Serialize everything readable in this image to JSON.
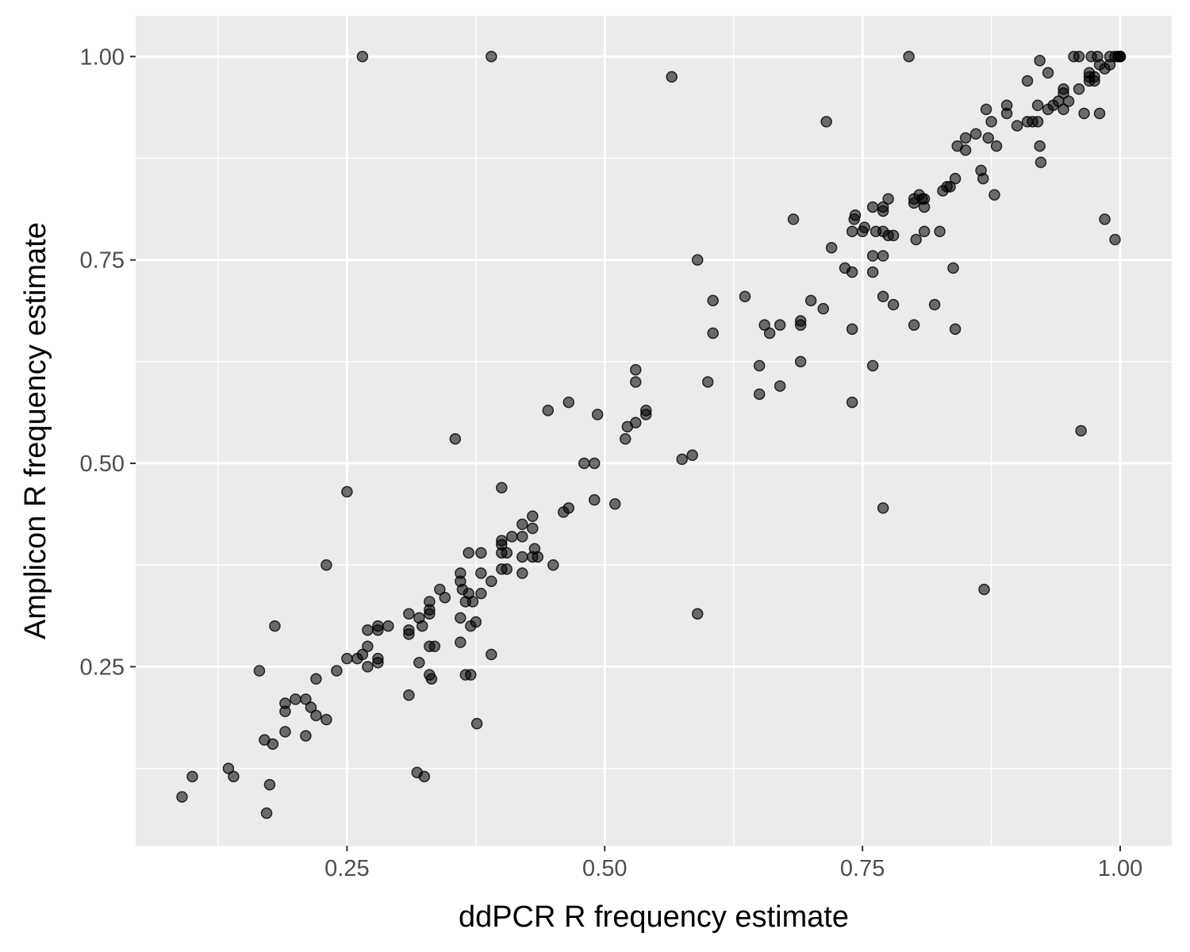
{
  "chart_data": {
    "type": "scatter",
    "title": "",
    "xlabel": "ddPCR R frequency estimate",
    "ylabel": "Amplicon R frequency estimate",
    "xlim": [
      0.045,
      1.05
    ],
    "ylim": [
      0.03,
      1.05
    ],
    "x_ticks": [
      0.25,
      0.5,
      0.75,
      1.0
    ],
    "x_tick_labels": [
      "0.25",
      "0.50",
      "0.75",
      "1.00"
    ],
    "y_ticks": [
      0.25,
      0.5,
      0.75,
      1.0
    ],
    "y_tick_labels": [
      "0.25",
      "0.50",
      "0.75",
      "1.00"
    ],
    "grid": true,
    "panel_color": "#ebebeb",
    "grid_color": "#ffffff",
    "point_color": "#000000",
    "points": [
      [
        0.09,
        0.09
      ],
      [
        0.1,
        0.115
      ],
      [
        0.135,
        0.125
      ],
      [
        0.14,
        0.115
      ],
      [
        0.165,
        0.245
      ],
      [
        0.17,
        0.16
      ],
      [
        0.172,
        0.07
      ],
      [
        0.175,
        0.105
      ],
      [
        0.178,
        0.155
      ],
      [
        0.18,
        0.3
      ],
      [
        0.19,
        0.17
      ],
      [
        0.19,
        0.195
      ],
      [
        0.19,
        0.205
      ],
      [
        0.2,
        0.21
      ],
      [
        0.21,
        0.21
      ],
      [
        0.21,
        0.165
      ],
      [
        0.215,
        0.2
      ],
      [
        0.22,
        0.19
      ],
      [
        0.22,
        0.235
      ],
      [
        0.23,
        0.185
      ],
      [
        0.23,
        0.375
      ],
      [
        0.24,
        0.245
      ],
      [
        0.25,
        0.26
      ],
      [
        0.25,
        0.465
      ],
      [
        0.26,
        0.26
      ],
      [
        0.265,
        0.265
      ],
      [
        0.265,
        1.0
      ],
      [
        0.27,
        0.275
      ],
      [
        0.27,
        0.25
      ],
      [
        0.27,
        0.295
      ],
      [
        0.28,
        0.3
      ],
      [
        0.28,
        0.255
      ],
      [
        0.28,
        0.26
      ],
      [
        0.28,
        0.295
      ],
      [
        0.29,
        0.3
      ],
      [
        0.31,
        0.29
      ],
      [
        0.31,
        0.295
      ],
      [
        0.31,
        0.315
      ],
      [
        0.31,
        0.215
      ],
      [
        0.318,
        0.12
      ],
      [
        0.32,
        0.255
      ],
      [
        0.32,
        0.31
      ],
      [
        0.323,
        0.3
      ],
      [
        0.325,
        0.115
      ],
      [
        0.33,
        0.315
      ],
      [
        0.33,
        0.32
      ],
      [
        0.33,
        0.275
      ],
      [
        0.33,
        0.24
      ],
      [
        0.33,
        0.33
      ],
      [
        0.332,
        0.235
      ],
      [
        0.335,
        0.275
      ],
      [
        0.34,
        0.345
      ],
      [
        0.345,
        0.335
      ],
      [
        0.355,
        0.53
      ],
      [
        0.36,
        0.365
      ],
      [
        0.36,
        0.355
      ],
      [
        0.36,
        0.31
      ],
      [
        0.36,
        0.28
      ],
      [
        0.362,
        0.345
      ],
      [
        0.365,
        0.33
      ],
      [
        0.365,
        0.24
      ],
      [
        0.368,
        0.39
      ],
      [
        0.368,
        0.34
      ],
      [
        0.37,
        0.3
      ],
      [
        0.37,
        0.24
      ],
      [
        0.372,
        0.33
      ],
      [
        0.375,
        0.305
      ],
      [
        0.376,
        0.18
      ],
      [
        0.38,
        0.365
      ],
      [
        0.38,
        0.34
      ],
      [
        0.38,
        0.39
      ],
      [
        0.39,
        0.265
      ],
      [
        0.39,
        0.355
      ],
      [
        0.39,
        1.0
      ],
      [
        0.4,
        0.4
      ],
      [
        0.4,
        0.39
      ],
      [
        0.4,
        0.405
      ],
      [
        0.4,
        0.47
      ],
      [
        0.4,
        0.37
      ],
      [
        0.405,
        0.39
      ],
      [
        0.405,
        0.37
      ],
      [
        0.41,
        0.41
      ],
      [
        0.42,
        0.425
      ],
      [
        0.42,
        0.41
      ],
      [
        0.42,
        0.385
      ],
      [
        0.42,
        0.365
      ],
      [
        0.43,
        0.435
      ],
      [
        0.43,
        0.42
      ],
      [
        0.43,
        0.385
      ],
      [
        0.432,
        0.395
      ],
      [
        0.435,
        0.385
      ],
      [
        0.445,
        0.565
      ],
      [
        0.45,
        0.375
      ],
      [
        0.46,
        0.44
      ],
      [
        0.465,
        0.445
      ],
      [
        0.465,
        0.575
      ],
      [
        0.48,
        0.5
      ],
      [
        0.49,
        0.5
      ],
      [
        0.49,
        0.455
      ],
      [
        0.493,
        0.56
      ],
      [
        0.51,
        0.45
      ],
      [
        0.52,
        0.53
      ],
      [
        0.522,
        0.545
      ],
      [
        0.53,
        0.615
      ],
      [
        0.53,
        0.6
      ],
      [
        0.53,
        0.55
      ],
      [
        0.54,
        0.565
      ],
      [
        0.54,
        0.56
      ],
      [
        0.565,
        0.975
      ],
      [
        0.575,
        0.505
      ],
      [
        0.585,
        0.51
      ],
      [
        0.59,
        0.75
      ],
      [
        0.59,
        0.315
      ],
      [
        0.6,
        0.6
      ],
      [
        0.605,
        0.7
      ],
      [
        0.605,
        0.66
      ],
      [
        0.636,
        0.705
      ],
      [
        0.65,
        0.62
      ],
      [
        0.65,
        0.585
      ],
      [
        0.655,
        0.67
      ],
      [
        0.66,
        0.66
      ],
      [
        0.67,
        0.67
      ],
      [
        0.67,
        0.595
      ],
      [
        0.683,
        0.8
      ],
      [
        0.69,
        0.675
      ],
      [
        0.69,
        0.67
      ],
      [
        0.69,
        0.625
      ],
      [
        0.7,
        0.7
      ],
      [
        0.712,
        0.69
      ],
      [
        0.715,
        0.92
      ],
      [
        0.72,
        0.765
      ],
      [
        0.733,
        0.74
      ],
      [
        0.74,
        0.735
      ],
      [
        0.74,
        0.785
      ],
      [
        0.74,
        0.665
      ],
      [
        0.74,
        0.575
      ],
      [
        0.742,
        0.8
      ],
      [
        0.743,
        0.805
      ],
      [
        0.75,
        0.785
      ],
      [
        0.752,
        0.79
      ],
      [
        0.76,
        0.815
      ],
      [
        0.76,
        0.755
      ],
      [
        0.76,
        0.735
      ],
      [
        0.76,
        0.62
      ],
      [
        0.763,
        0.785
      ],
      [
        0.77,
        0.785
      ],
      [
        0.77,
        0.81
      ],
      [
        0.77,
        0.815
      ],
      [
        0.77,
        0.755
      ],
      [
        0.77,
        0.705
      ],
      [
        0.77,
        0.445
      ],
      [
        0.775,
        0.825
      ],
      [
        0.775,
        0.78
      ],
      [
        0.78,
        0.78
      ],
      [
        0.78,
        0.695
      ],
      [
        0.795,
        1.0
      ],
      [
        0.8,
        0.825
      ],
      [
        0.8,
        0.82
      ],
      [
        0.8,
        0.67
      ],
      [
        0.802,
        0.775
      ],
      [
        0.805,
        0.83
      ],
      [
        0.808,
        0.825
      ],
      [
        0.81,
        0.815
      ],
      [
        0.81,
        0.785
      ],
      [
        0.81,
        0.825
      ],
      [
        0.82,
        0.695
      ],
      [
        0.825,
        0.785
      ],
      [
        0.828,
        0.835
      ],
      [
        0.832,
        0.84
      ],
      [
        0.835,
        0.84
      ],
      [
        0.838,
        0.74
      ],
      [
        0.84,
        0.85
      ],
      [
        0.84,
        0.665
      ],
      [
        0.842,
        0.89
      ],
      [
        0.85,
        0.9
      ],
      [
        0.85,
        0.885
      ],
      [
        0.86,
        0.905
      ],
      [
        0.865,
        0.86
      ],
      [
        0.867,
        0.85
      ],
      [
        0.868,
        0.345
      ],
      [
        0.87,
        0.935
      ],
      [
        0.872,
        0.9
      ],
      [
        0.875,
        0.92
      ],
      [
        0.878,
        0.83
      ],
      [
        0.88,
        0.89
      ],
      [
        0.89,
        0.94
      ],
      [
        0.89,
        0.93
      ],
      [
        0.9,
        0.915
      ],
      [
        0.91,
        0.97
      ],
      [
        0.91,
        0.92
      ],
      [
        0.915,
        0.92
      ],
      [
        0.92,
        0.94
      ],
      [
        0.92,
        0.92
      ],
      [
        0.922,
        0.995
      ],
      [
        0.922,
        0.89
      ],
      [
        0.923,
        0.87
      ],
      [
        0.93,
        0.98
      ],
      [
        0.93,
        0.935
      ],
      [
        0.935,
        0.94
      ],
      [
        0.94,
        0.945
      ],
      [
        0.945,
        0.96
      ],
      [
        0.945,
        0.935
      ],
      [
        0.945,
        0.955
      ],
      [
        0.95,
        0.945
      ],
      [
        0.955,
        1.0
      ],
      [
        0.96,
        0.96
      ],
      [
        0.962,
        0.54
      ],
      [
        0.96,
        1.0
      ],
      [
        0.965,
        0.93
      ],
      [
        0.97,
        0.97
      ],
      [
        0.97,
        0.975
      ],
      [
        0.97,
        0.98
      ],
      [
        0.972,
        1.0
      ],
      [
        0.975,
        0.97
      ],
      [
        0.975,
        0.975
      ],
      [
        0.978,
        1.0
      ],
      [
        0.98,
        0.99
      ],
      [
        0.98,
        0.93
      ],
      [
        0.985,
        0.8
      ],
      [
        0.985,
        0.985
      ],
      [
        0.99,
        0.99
      ],
      [
        0.99,
        1.0
      ],
      [
        0.995,
        0.775
      ],
      [
        0.995,
        1.0
      ],
      [
        0.998,
        1.0
      ],
      [
        1.0,
        1.0
      ],
      [
        1.0,
        1.0
      ],
      [
        1.0,
        1.0
      ]
    ]
  }
}
